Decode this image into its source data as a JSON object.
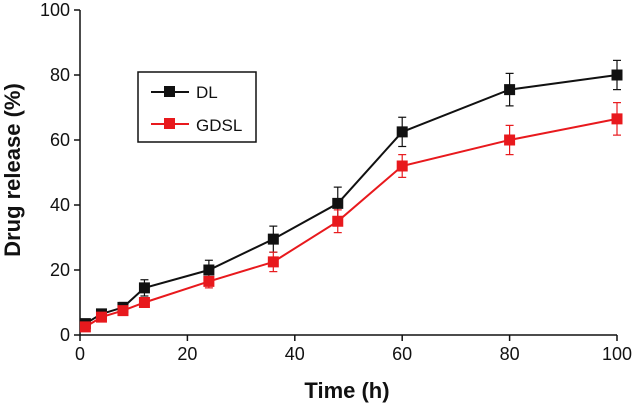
{
  "chart_data": {
    "type": "line",
    "title": "",
    "xlabel": "Time (h)",
    "ylabel": "Drug release (%)",
    "xlim": [
      0,
      100
    ],
    "ylim": [
      0,
      100
    ],
    "xticks": [
      0,
      20,
      40,
      60,
      80,
      100
    ],
    "yticks": [
      0,
      20,
      40,
      60,
      80,
      100
    ],
    "grid": false,
    "legend_position": "upper-left",
    "x": [
      1,
      4,
      8,
      12,
      24,
      36,
      48,
      60,
      80,
      100
    ],
    "series": [
      {
        "name": "DL",
        "color": "#111111",
        "marker": "square",
        "values": [
          3.5,
          6.5,
          8.5,
          14.5,
          20.0,
          29.5,
          40.5,
          62.5,
          75.5,
          80.0
        ],
        "errors": [
          1.0,
          1.2,
          1.5,
          2.5,
          3.0,
          4.0,
          5.0,
          4.5,
          5.0,
          4.5
        ]
      },
      {
        "name": "GDSL",
        "color": "#e8191d",
        "marker": "square",
        "values": [
          2.5,
          5.5,
          7.5,
          10.0,
          16.5,
          22.5,
          35.0,
          52.0,
          60.0,
          66.5
        ],
        "errors": [
          0.8,
          1.0,
          1.2,
          1.5,
          2.0,
          3.0,
          3.5,
          3.5,
          4.5,
          5.0
        ]
      }
    ]
  }
}
